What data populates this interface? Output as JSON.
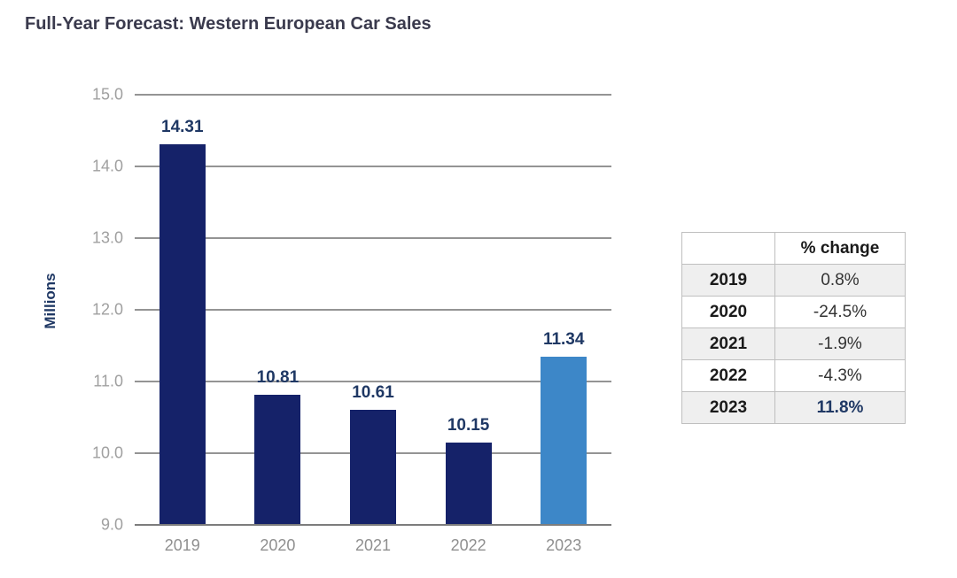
{
  "chart_data": {
    "type": "bar",
    "title": "Full-Year Forecast: Western European Car Sales",
    "ylabel": "Millions",
    "xlabel": "",
    "categories": [
      "2019",
      "2020",
      "2021",
      "2022",
      "2023"
    ],
    "values": [
      14.31,
      10.81,
      10.61,
      10.15,
      11.34
    ],
    "data_labels": [
      "14.31",
      "10.81",
      "10.61",
      "10.15",
      "11.34"
    ],
    "ylim": [
      9.0,
      15.0
    ],
    "yticks": [
      "15.0",
      "14.0",
      "13.0",
      "12.0",
      "11.0",
      "10.0",
      "9.0"
    ],
    "grid": true,
    "legend": "none",
    "bar_colors": [
      "#152269",
      "#152269",
      "#152269",
      "#152269",
      "#3d87c8"
    ]
  },
  "table": {
    "header": {
      "year_col": "",
      "change_col": "% change"
    },
    "rows": [
      {
        "year": "2019",
        "change": "0.8%",
        "highlight": false
      },
      {
        "year": "2020",
        "change": "-24.5%",
        "highlight": false
      },
      {
        "year": "2021",
        "change": "-1.9%",
        "highlight": false
      },
      {
        "year": "2022",
        "change": "-4.3%",
        "highlight": false
      },
      {
        "year": "2023",
        "change": "11.8%",
        "highlight": true
      }
    ]
  },
  "colors": {
    "bar_navy": "#152269",
    "bar_highlight_blue": "#3d87c8",
    "data_label_navy": "#1f3864",
    "title_color": "#3a3a4d",
    "gridline_gray": "#949494",
    "axis_gray": "#7d7d7d",
    "y_tick_gray": "#a0a0a0",
    "x_tick_gray": "#8f8f8f",
    "table_border": "#bfbfbf",
    "table_alt_row": "#efefef",
    "background": "#ffffff"
  }
}
